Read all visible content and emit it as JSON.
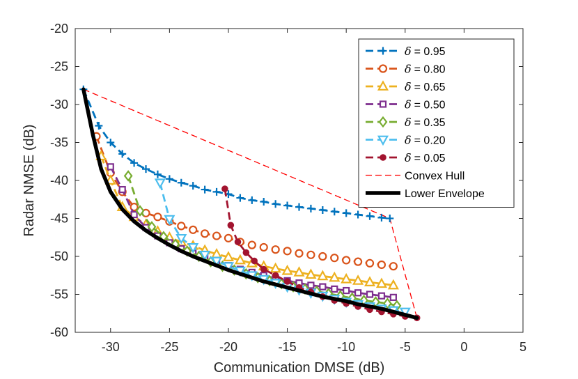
{
  "chart_data": {
    "type": "line",
    "title": "",
    "xlabel": "Communication DMSE (dB)",
    "ylabel": "Radar NMSE (dB)",
    "xlim": [
      -33,
      5
    ],
    "ylim": [
      -60,
      -20
    ],
    "xticks": [
      -30,
      -25,
      -20,
      -15,
      -10,
      -5,
      0,
      5
    ],
    "yticks": [
      -20,
      -25,
      -30,
      -35,
      -40,
      -45,
      -50,
      -55,
      -60
    ],
    "grid": false,
    "legend_position": "top-right",
    "series": [
      {
        "name": "δ = 0.95",
        "delta_symbol": "δ",
        "delta_value": "= 0.95",
        "color": "#0072BD",
        "marker": "plus",
        "linestyle": "dashed",
        "x": [
          -32.3,
          -31.0,
          -30.0,
          -29.0,
          -28.0,
          -27.0,
          -26.0,
          -25.0,
          -24.0,
          -23.0,
          -22.0,
          -21.0,
          -20.0,
          -19.0,
          -18.0,
          -17.0,
          -16.0,
          -15.0,
          -14.0,
          -13.0,
          -12.0,
          -11.0,
          -10.0,
          -9.0,
          -8.0,
          -7.0,
          -6.3
        ],
        "y": [
          -28.0,
          -32.8,
          -35.0,
          -36.5,
          -37.7,
          -38.5,
          -39.2,
          -39.8,
          -40.3,
          -40.7,
          -41.2,
          -41.5,
          -41.8,
          -42.3,
          -42.6,
          -42.8,
          -43.1,
          -43.3,
          -43.5,
          -43.7,
          -43.9,
          -44.1,
          -44.3,
          -44.5,
          -44.7,
          -44.9,
          -45.0
        ]
      },
      {
        "name": "δ = 0.80",
        "delta_symbol": "δ",
        "delta_value": "= 0.80",
        "color": "#D95319",
        "marker": "circle",
        "linestyle": "dashed",
        "x": [
          -31.2,
          -30.0,
          -29.0,
          -28.0,
          -27.0,
          -26.0,
          -25.0,
          -24.0,
          -23.0,
          -22.0,
          -21.0,
          -20.0,
          -19.0,
          -18.0,
          -17.0,
          -16.0,
          -15.0,
          -14.0,
          -13.0,
          -12.0,
          -11.0,
          -10.0,
          -9.0,
          -8.0,
          -7.0,
          -6.0
        ],
        "y": [
          -34.2,
          -39.0,
          -41.5,
          -43.5,
          -44.3,
          -44.8,
          -45.4,
          -46.0,
          -46.5,
          -47.0,
          -47.3,
          -47.6,
          -48.1,
          -48.5,
          -48.8,
          -49.1,
          -49.3,
          -49.6,
          -49.8,
          -50.0,
          -50.2,
          -50.5,
          -50.7,
          -50.9,
          -51.1,
          -51.3
        ]
      },
      {
        "name": "δ = 0.65",
        "delta_symbol": "δ",
        "delta_value": "= 0.65",
        "color": "#EDB120",
        "marker": "triangle-up",
        "linestyle": "dashed",
        "x": [
          -30.8,
          -30.0,
          -29.0,
          -28.0,
          -27.0,
          -26.0,
          -25.0,
          -24.0,
          -23.0,
          -22.0,
          -21.0,
          -20.0,
          -19.0,
          -18.0,
          -17.0,
          -16.0,
          -15.0,
          -14.0,
          -13.0,
          -12.0,
          -11.0,
          -10.0,
          -9.0,
          -8.0,
          -7.0,
          -6.0
        ],
        "y": [
          -36.8,
          -40.0,
          -43.5,
          -44.8,
          -45.8,
          -46.7,
          -47.5,
          -48.1,
          -48.6,
          -49.2,
          -49.7,
          -50.1,
          -50.5,
          -50.9,
          -51.3,
          -51.6,
          -51.9,
          -52.1,
          -52.4,
          -52.6,
          -52.8,
          -53.0,
          -53.2,
          -53.4,
          -53.6,
          -53.8
        ]
      },
      {
        "name": "δ = 0.50",
        "delta_symbol": "δ",
        "delta_value": "= 0.50",
        "color": "#7E2F8E",
        "marker": "square",
        "linestyle": "dashed",
        "x": [
          -30.0,
          -29.0,
          -28.0,
          -27.0,
          -26.0,
          -25.0,
          -24.0,
          -23.0,
          -22.0,
          -21.0,
          -20.0,
          -19.0,
          -18.0,
          -17.0,
          -16.0,
          -15.0,
          -14.0,
          -13.0,
          -12.0,
          -11.0,
          -10.0,
          -9.0,
          -8.0,
          -7.0,
          -6.0
        ],
        "y": [
          -38.2,
          -41.2,
          -44.5,
          -46.2,
          -47.3,
          -48.2,
          -49.0,
          -49.6,
          -50.2,
          -50.7,
          -51.2,
          -51.7,
          -52.1,
          -52.5,
          -52.9,
          -53.2,
          -53.5,
          -53.8,
          -54.0,
          -54.3,
          -54.5,
          -54.8,
          -55.0,
          -55.2,
          -55.4
        ]
      },
      {
        "name": "δ = 0.35",
        "delta_symbol": "δ",
        "delta_value": "= 0.35",
        "color": "#77AC30",
        "marker": "diamond",
        "linestyle": "dashed",
        "x": [
          -28.5,
          -27.5,
          -26.5,
          -25.5,
          -24.5,
          -23.5,
          -22.5,
          -21.5,
          -20.5,
          -19.5,
          -18.5,
          -17.5,
          -16.5,
          -15.5,
          -14.5,
          -13.5,
          -12.5,
          -11.5,
          -10.5,
          -9.5,
          -8.5,
          -7.5,
          -6.5,
          -5.7
        ],
        "y": [
          -39.4,
          -44.0,
          -46.1,
          -47.4,
          -48.4,
          -49.3,
          -50.0,
          -50.7,
          -51.3,
          -51.8,
          -52.3,
          -52.8,
          -53.2,
          -53.6,
          -54.0,
          -54.3,
          -54.6,
          -54.9,
          -55.2,
          -55.5,
          -55.8,
          -56.0,
          -56.2,
          -56.5
        ]
      },
      {
        "name": "δ = 0.20",
        "delta_symbol": "δ",
        "delta_value": "= 0.20",
        "color": "#4DBEEE",
        "marker": "triangle-down",
        "linestyle": "dashed",
        "x": [
          -25.8,
          -25.0,
          -24.0,
          -23.0,
          -22.0,
          -21.0,
          -20.0,
          -19.0,
          -18.0,
          -17.0,
          -16.0,
          -15.0,
          -14.0,
          -13.0,
          -12.0,
          -11.0,
          -10.0,
          -9.0,
          -8.0,
          -7.0,
          -6.0,
          -5.0
        ],
        "y": [
          -40.3,
          -45.1,
          -47.6,
          -48.8,
          -49.8,
          -50.6,
          -51.3,
          -51.9,
          -52.5,
          -53.0,
          -53.5,
          -54.0,
          -54.4,
          -54.8,
          -55.2,
          -55.6,
          -56.0,
          -56.3,
          -56.6,
          -56.9,
          -57.1,
          -57.3
        ]
      },
      {
        "name": "δ = 0.05",
        "delta_symbol": "δ",
        "delta_value": "= 0.05",
        "color": "#A2142F",
        "marker": "filled-circle",
        "linestyle": "dashed",
        "x": [
          -20.3,
          -19.8,
          -19.2,
          -18.5,
          -17.8,
          -17.0,
          -16.0,
          -15.0,
          -14.0,
          -13.0,
          -12.0,
          -11.0,
          -10.0,
          -9.0,
          -8.0,
          -7.0,
          -6.0,
          -5.0,
          -4.0
        ],
        "y": [
          -41.1,
          -45.9,
          -48.1,
          -49.5,
          -50.6,
          -51.7,
          -52.5,
          -53.3,
          -54.1,
          -54.7,
          -55.3,
          -55.8,
          -56.2,
          -56.6,
          -57.0,
          -57.3,
          -57.6,
          -57.9,
          -58.1
        ]
      }
    ],
    "convex_hull": {
      "name": "Convex Hull",
      "color": "#FF0000",
      "linestyle": "dashed",
      "x": [
        -32.3,
        -6.3,
        -4.0
      ],
      "y": [
        -28.0,
        -45.0,
        -58.1
      ]
    },
    "lower_envelope": {
      "name": "Lower Envelope",
      "color": "#000000",
      "linestyle": "solid",
      "x": [
        -32.3,
        -31.5,
        -30.8,
        -30.0,
        -29.0,
        -28.0,
        -27.0,
        -26.0,
        -25.0,
        -24.0,
        -23.0,
        -22.0,
        -21.0,
        -20.0,
        -19.0,
        -18.0,
        -17.0,
        -16.0,
        -15.0,
        -14.0,
        -13.0,
        -12.0,
        -11.0,
        -10.0,
        -9.0,
        -8.0,
        -7.0,
        -6.0,
        -5.0,
        -4.0
      ],
      "y": [
        -28.0,
        -34.0,
        -38.5,
        -41.5,
        -43.8,
        -45.4,
        -46.6,
        -47.6,
        -48.5,
        -49.3,
        -50.0,
        -50.6,
        -51.2,
        -51.8,
        -52.3,
        -52.8,
        -53.3,
        -53.7,
        -54.1,
        -54.5,
        -54.9,
        -55.3,
        -55.6,
        -55.9,
        -56.3,
        -56.6,
        -56.9,
        -57.3,
        -57.7,
        -58.1
      ]
    }
  }
}
